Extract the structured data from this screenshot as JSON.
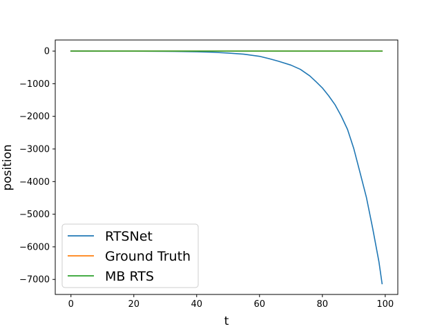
{
  "chart_data": {
    "type": "line",
    "title": "",
    "xlabel": "t",
    "ylabel": "position",
    "xlim": [
      -5,
      104
    ],
    "ylim": [
      -7460,
      340
    ],
    "xticks": [
      0,
      20,
      40,
      60,
      80,
      100
    ],
    "yticks": [
      0,
      -1000,
      -2000,
      -3000,
      -4000,
      -5000,
      -6000,
      -7000
    ],
    "xtick_labels": [
      "0",
      "20",
      "40",
      "60",
      "80",
      "100"
    ],
    "ytick_labels": [
      "0",
      "−1000",
      "−2000",
      "−3000",
      "−4000",
      "−5000",
      "−6000",
      "−7000"
    ],
    "grid": false,
    "legend_position": "lower-left",
    "series": [
      {
        "name": "RTSNet",
        "color": "#1f77b4",
        "x": [
          0,
          10,
          20,
          30,
          35,
          40,
          45,
          50,
          55,
          60,
          63,
          66,
          70,
          73,
          76,
          78,
          80,
          82,
          84,
          86,
          88,
          90,
          92,
          94,
          96,
          98,
          99
        ],
        "y": [
          0,
          -1,
          -3,
          -7,
          -12,
          -20,
          -35,
          -60,
          -95,
          -160,
          -230,
          -310,
          -430,
          -560,
          -760,
          -940,
          -1130,
          -1370,
          -1640,
          -1990,
          -2400,
          -2990,
          -3730,
          -4480,
          -5430,
          -6460,
          -7130
        ]
      },
      {
        "name": "Ground Truth",
        "color": "#ff7f0e",
        "x": [
          0,
          99
        ],
        "y": [
          0,
          0
        ]
      },
      {
        "name": "MB RTS",
        "color": "#2ca02c",
        "x": [
          0,
          99
        ],
        "y": [
          0,
          0
        ]
      }
    ]
  }
}
